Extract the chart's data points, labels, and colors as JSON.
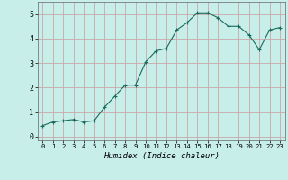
{
  "x": [
    0,
    1,
    2,
    3,
    4,
    5,
    6,
    7,
    8,
    9,
    10,
    11,
    12,
    13,
    14,
    15,
    16,
    17,
    18,
    19,
    20,
    21,
    22,
    23
  ],
  "y": [
    0.45,
    0.6,
    0.65,
    0.7,
    0.6,
    0.65,
    1.2,
    1.65,
    2.1,
    2.1,
    3.05,
    3.5,
    3.6,
    4.35,
    4.65,
    5.05,
    5.05,
    4.85,
    4.5,
    4.5,
    4.15,
    3.55,
    4.35,
    4.45
  ],
  "xlabel": "Humidex (Indice chaleur)",
  "xlim": [
    -0.5,
    23.5
  ],
  "ylim": [
    -0.15,
    5.5
  ],
  "yticks": [
    0,
    1,
    2,
    3,
    4,
    5
  ],
  "xticks": [
    0,
    1,
    2,
    3,
    4,
    5,
    6,
    7,
    8,
    9,
    10,
    11,
    12,
    13,
    14,
    15,
    16,
    17,
    18,
    19,
    20,
    21,
    22,
    23
  ],
  "line_color": "#1a6b5a",
  "marker": "+",
  "bg_color": "#c8eeea",
  "grid_color": "#c8a8a8",
  "title": ""
}
